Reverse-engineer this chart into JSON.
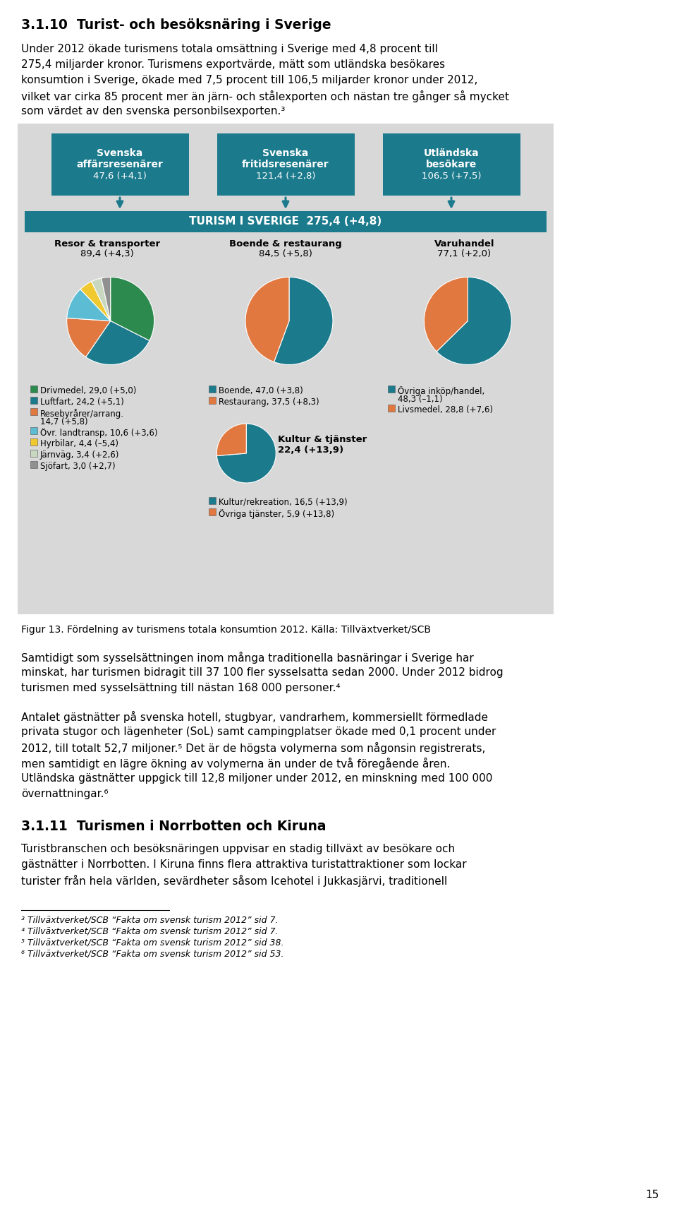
{
  "title_section": "3.1.10  Turist- och besöksnäring i Sverige",
  "bg_color": "#d8d8d8",
  "teal_color": "#1b7a8c",
  "top_box_labels": [
    "Svenska\naffärsresenärer\n47,6 (+4,1)",
    "Svenska\nfritidsresenärer\n121,4 (+2,8)",
    "Utländska\nbesökare\n106,5 (+7,5)"
  ],
  "center_box": "TURISM I SVERIGE  275,4 (+4,8)",
  "cat_labels": [
    "Resor & transporter\n89,4 (+4,3)",
    "Boende & restaurang\n84,5 (+5,8)",
    "Varuhandel\n77,1 (+2,0)"
  ],
  "pie1_values": [
    29.0,
    24.2,
    14.7,
    10.6,
    4.4,
    3.4,
    3.0
  ],
  "pie1_colors": [
    "#2d8a4e",
    "#1b7a8c",
    "#e07840",
    "#5bbcd4",
    "#f0c830",
    "#c8d8c0",
    "#909090"
  ],
  "pie1_startangle": 90,
  "pie2_values": [
    47.0,
    37.5
  ],
  "pie2_colors": [
    "#1b7a8c",
    "#e07840"
  ],
  "pie2_startangle": 90,
  "pie3_values": [
    48.3,
    28.8
  ],
  "pie3_colors": [
    "#1b7a8c",
    "#e07840"
  ],
  "pie3_startangle": 90,
  "pie4_values": [
    16.5,
    5.9
  ],
  "pie4_colors": [
    "#1b7a8c",
    "#e07840"
  ],
  "pie4_startangle": 90,
  "legend1": [
    {
      "color": "#2d8a4e",
      "label": "Drivmedel, 29,0 (+5,0)",
      "wrap": false
    },
    {
      "color": "#1b7a8c",
      "label": "Luftfart, 24,2 (+5,1)",
      "wrap": false
    },
    {
      "color": "#e07840",
      "label": "Resebyrårer/arrang.",
      "label2": "14,7 (+5,8)",
      "wrap": true
    },
    {
      "color": "#5bbcd4",
      "label": "Övr. landtransp, 10,6 (+3,6)",
      "wrap": false
    },
    {
      "color": "#f0c830",
      "label": "Hyrbilar, 4,4 (–5,4)",
      "wrap": false
    },
    {
      "color": "#c8d8c0",
      "label": "Järnväg, 3,4 (+2,6)",
      "wrap": false
    },
    {
      "color": "#909090",
      "label": "Sjöfart, 3,0 (+2,7)",
      "wrap": false
    }
  ],
  "legend2": [
    {
      "color": "#1b7a8c",
      "label": "Boende, 47,0 (+3,8)",
      "wrap": false
    },
    {
      "color": "#e07840",
      "label": "Restaurang, 37,5 (+8,3)",
      "wrap": false
    }
  ],
  "legend3": [
    {
      "color": "#1b7a8c",
      "label": "Övriga inköp/handel,",
      "label2": "48,3 (–1,1)",
      "wrap": true
    },
    {
      "color": "#e07840",
      "label": "Livsmedel, 28,8 (+7,6)",
      "wrap": false
    }
  ],
  "legend4": [
    {
      "color": "#1b7a8c",
      "label": "Kultur/rekreation, 16,5 (+13,9)",
      "wrap": false
    },
    {
      "color": "#e07840",
      "label": "Övriga tjänster, 5,9 (+13,8)",
      "wrap": false
    }
  ],
  "kultur_label": "Kultur & tjänster\n22,4 (+13,9)",
  "fig_caption": "Figur 13. Fördelning av turismens totala konsumtion 2012. Källa: Tillväxtverket/SCB",
  "para1_lines": [
    "Under 2012 ökade turismens totala omsättning i Sverige med 4,8 procent till",
    "275,4 miljarder kronor. Turismens exportvärde, mätt som utländska besökares",
    "konsumtion i Sverige, ökade med 7,5 procent till 106,5 miljarder kronor under 2012,",
    "vilket var cirka 85 procent mer än järn- och stålexporten och nästan tre gånger så mycket",
    "som värdet av den svenska personbilsexporten.³"
  ],
  "para2_lines": [
    "Samtidigt som sysselsättningen inom många traditionella basnäringar i Sverige har",
    "minskat, har turismen bidragit till 37 100 fler sysselsatta sedan 2000. Under 2012 bidrog",
    "turismen med sysselsättning till nästan 168 000 personer.⁴"
  ],
  "para3_lines": [
    "Antalet gästnätter på svenska hotell, stugbyar, vandrarhem, kommersiellt förmedlade",
    "privata stugor och lägenheter (SoL) samt campingplatser ökade med 0,1 procent under",
    "2012, till totalt 52,7 miljoner.⁵ Det är de högsta volymerna som någonsin registrerats,",
    "men samtidigt en lägre ökning av volymerna än under de två föregående åren.",
    "Utländska gästnätter uppgick till 12,8 miljoner under 2012, en minskning med 100 000",
    "övernattningar.⁶"
  ],
  "heading2": "3.1.11  Turismen i Norrbotten och Kiruna",
  "para4_lines": [
    "Turistbranschen och besöksnäringen uppvisar en stadig tillväxt av besökare och",
    "gästnätter i Norrbotten. I Kiruna finns flera attraktiva turistattraktioner som lockar",
    "turister från hela världen, sevärdheter såsom Icehotel i Jukkasjärvi, traditionell"
  ],
  "footnotes": [
    "³ Tillväxtverket/SCB “Fakta om svensk turism 2012” sid 7.",
    "⁴ Tillväxtverket/SCB “Fakta om svensk turism 2012” sid 7.",
    "⁵ Tillväxtverket/SCB “Fakta om svensk turism 2012” sid 38.",
    "⁶ Tillväxtverket/SCB “Fakta om svensk turism 2012” sid 53."
  ],
  "page_number": "15"
}
